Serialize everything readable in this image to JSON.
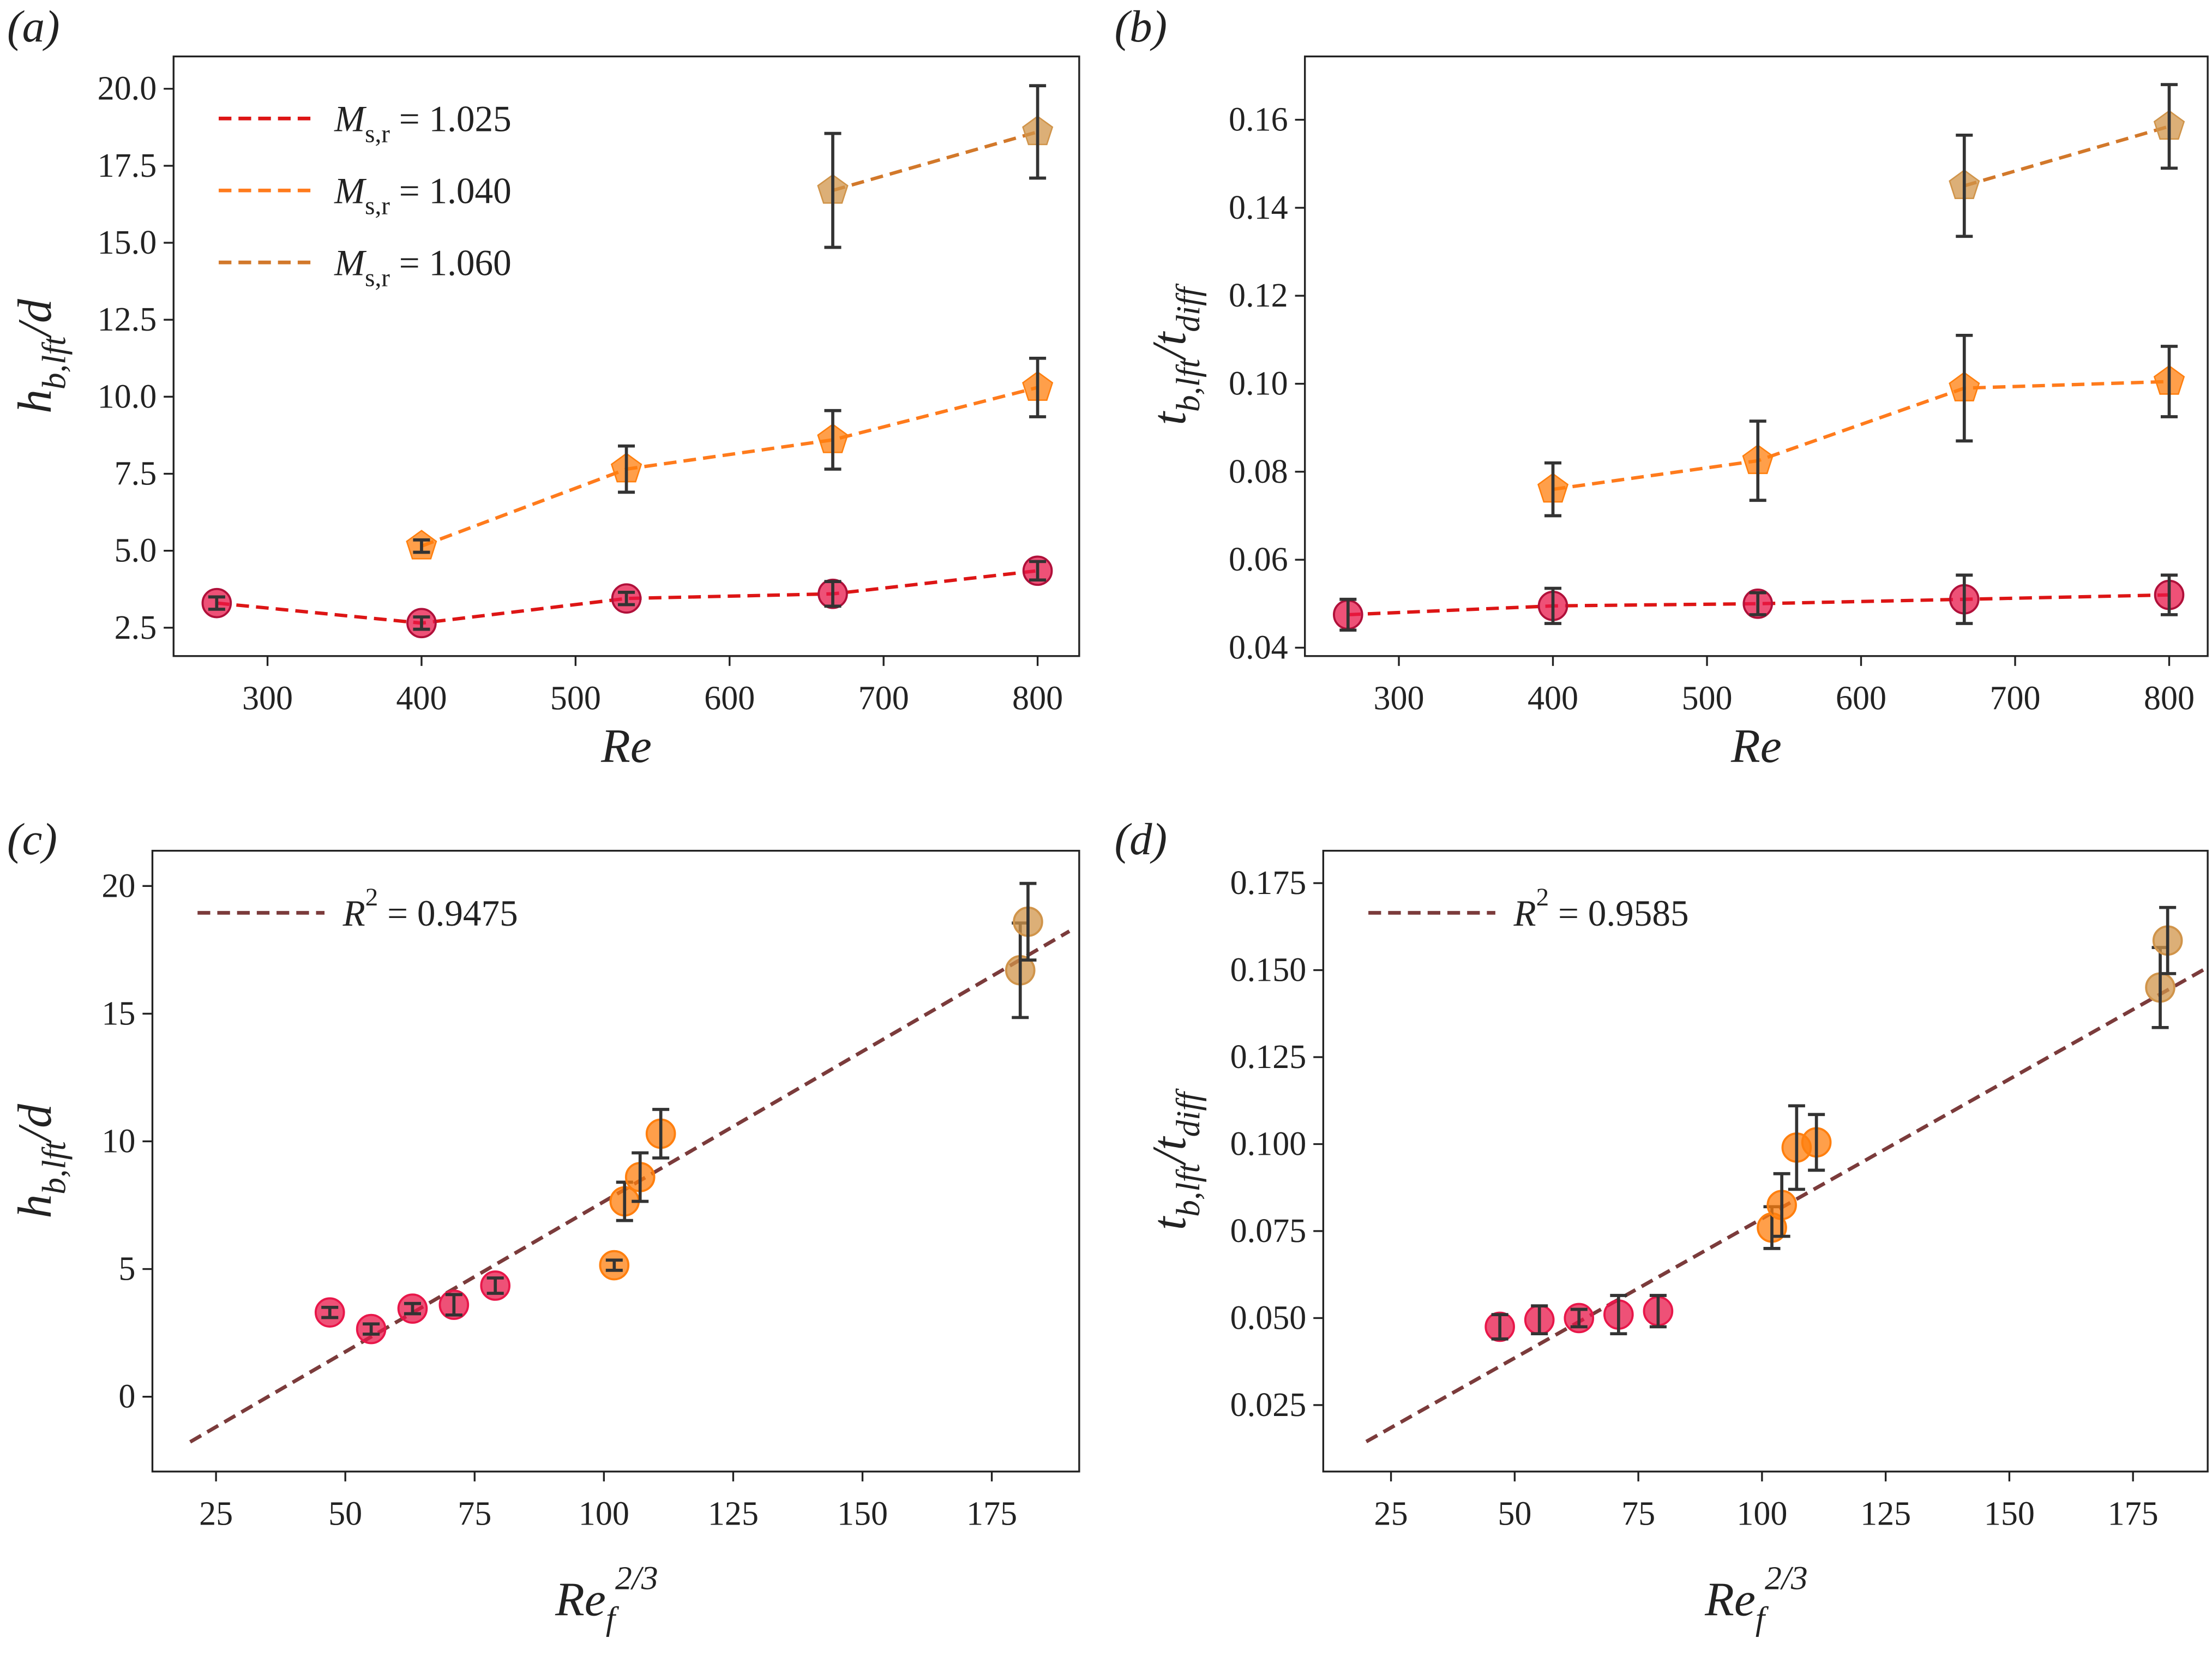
{
  "chart_data": [
    {
      "type": "line",
      "title": "(a)",
      "xlabel": [
        {
          "text": "Re"
        }
      ],
      "ylabel": [
        {
          "text": "h"
        },
        {
          "text": "b,lft",
          "sub": true
        },
        {
          "text": "/d"
        }
      ],
      "x": [
        267,
        400,
        533,
        667,
        800
      ],
      "xlim": [
        239,
        827
      ],
      "xticks": [
        300,
        400,
        500,
        600,
        700,
        800
      ],
      "ylim": [
        1.58,
        21.05
      ],
      "yticks": [
        2.5,
        {
          "value": 5,
          "label": "5.0"
        },
        7.5,
        {
          "value": 10,
          "label": "10.0"
        },
        12.5,
        {
          "value": 15,
          "label": "15.0"
        },
        17.5,
        {
          "value": 20,
          "label": "20.0"
        }
      ],
      "legend": "upper left",
      "series": [
        {
          "name": [
            {
              "text": "M"
            },
            {
              "text": "s,r",
              "sub": true
            },
            {
              "text": " = 1.025"
            }
          ],
          "color": "#dd1515",
          "marker_color": "#e8174a",
          "marker": "circle",
          "values": [
            3.3,
            2.65,
            3.45,
            3.6,
            4.35
          ],
          "errors": [
            0.2,
            0.2,
            0.2,
            0.4,
            0.3
          ]
        },
        {
          "name": [
            {
              "text": "M"
            },
            {
              "text": "s,r",
              "sub": true
            },
            {
              "text": " = 1.040"
            }
          ],
          "color": "#ff7b1c",
          "marker_color": "#ff7f0e",
          "marker": "pentagon",
          "values": [
            null,
            5.15,
            7.65,
            8.6,
            10.3
          ],
          "errors": [
            null,
            0.2,
            0.75,
            0.95,
            0.95
          ]
        },
        {
          "name": [
            {
              "text": "M"
            },
            {
              "text": "s,r",
              "sub": true
            },
            {
              "text": " = 1.060"
            }
          ],
          "color": "#d2782a",
          "marker_color": "#d0944a",
          "marker": "pentagon",
          "values": [
            null,
            null,
            null,
            16.7,
            18.6
          ],
          "errors": [
            null,
            null,
            null,
            1.85,
            1.5
          ]
        }
      ]
    },
    {
      "type": "line",
      "title": "(b)",
      "xlabel": [
        {
          "text": "Re"
        }
      ],
      "ylabel": [
        {
          "text": "t"
        },
        {
          "text": "b,lft",
          "sub": true
        },
        {
          "text": "/t"
        },
        {
          "text": "diff",
          "sub": true
        }
      ],
      "x": [
        267,
        400,
        533,
        667,
        800
      ],
      "xlim": [
        239,
        825
      ],
      "xticks": [
        300,
        400,
        500,
        600,
        700,
        800
      ],
      "ylim": [
        0.0381,
        0.1744
      ],
      "yticks": [
        0.04,
        0.06,
        0.08,
        {
          "value": 0.1,
          "label": "0.10"
        },
        0.12,
        0.14,
        0.16
      ],
      "series": [
        {
          "color": "#dd1515",
          "marker_color": "#e8174a",
          "marker": "circle",
          "values": [
            0.0475,
            0.0495,
            0.05,
            0.051,
            0.052
          ],
          "errors": [
            0.0035,
            0.004,
            0.0025,
            0.0055,
            0.0045
          ]
        },
        {
          "color": "#ff7b1c",
          "marker_color": "#ff7f0e",
          "marker": "pentagon",
          "values": [
            null,
            0.076,
            0.0825,
            0.099,
            0.1005
          ],
          "errors": [
            null,
            0.006,
            0.009,
            0.012,
            0.008
          ]
        },
        {
          "color": "#d2782a",
          "marker_color": "#d0944a",
          "marker": "pentagon",
          "values": [
            null,
            null,
            null,
            0.145,
            0.1585
          ],
          "errors": [
            null,
            null,
            null,
            0.0115,
            0.0095
          ]
        }
      ]
    },
    {
      "type": "scatter",
      "title": "(c)",
      "xlabel": [
        {
          "text": "Re"
        },
        {
          "text": "f",
          "sub": true
        },
        {
          "text": "2/3",
          "sup": true
        }
      ],
      "ylabel": [
        {
          "text": "h"
        },
        {
          "text": "b,lft",
          "sub": true
        },
        {
          "text": "/d"
        }
      ],
      "xlim": [
        12.7,
        191.9
      ],
      "xticks": [
        25,
        50,
        75,
        100,
        125,
        150,
        175
      ],
      "ylim": [
        -2.93,
        21.38
      ],
      "yticks": [
        0,
        5,
        10,
        15,
        20
      ],
      "legend": "upper left",
      "fit": {
        "name": [
          {
            "text": "R"
          },
          {
            "text": "2",
            "sup": true
          },
          {
            "text": " = 0.9475"
          }
        ],
        "color": "#7b3b3b",
        "x": [
          20,
          190
        ],
        "values": [
          -1.77,
          18.23
        ]
      },
      "series": [
        {
          "color": "#e8174a",
          "x": [
            47,
            55,
            63,
            71,
            79
          ],
          "values": [
            3.3,
            2.65,
            3.45,
            3.6,
            4.35
          ],
          "errors": [
            0.2,
            0.2,
            0.2,
            0.4,
            0.3
          ]
        },
        {
          "color": "#ff7f0e",
          "x": [
            102,
            104,
            107,
            111
          ],
          "values": [
            5.15,
            7.65,
            8.6,
            10.3
          ],
          "errors": [
            0.2,
            0.75,
            0.95,
            0.95
          ]
        },
        {
          "color": "#d0944a",
          "x": [
            180.5,
            182
          ],
          "values": [
            16.7,
            18.6
          ],
          "errors": [
            1.85,
            1.5
          ]
        }
      ]
    },
    {
      "type": "scatter",
      "title": "(d)",
      "xlabel": [
        {
          "text": "Re"
        },
        {
          "text": "f",
          "sub": true
        },
        {
          "text": "2/3",
          "sup": true
        }
      ],
      "ylabel": [
        {
          "text": "t"
        },
        {
          "text": "b,lft",
          "sub": true
        },
        {
          "text": "/t"
        },
        {
          "text": "diff",
          "sub": true
        }
      ],
      "xlim": [
        11.3,
        190.1
      ],
      "xticks": [
        25,
        50,
        75,
        100,
        125,
        150,
        175
      ],
      "ylim": [
        0.0059,
        0.1843
      ],
      "yticks": [
        0.025,
        {
          "value": 0.05,
          "label": "0.050"
        },
        0.075,
        {
          "value": 0.1,
          "label": "0.100"
        },
        0.125,
        {
          "value": 0.15,
          "label": "0.150"
        },
        0.175
      ],
      "legend": "upper left",
      "fit": {
        "name": [
          {
            "text": "R"
          },
          {
            "text": "2",
            "sup": true
          },
          {
            "text": " = 0.9585"
          }
        ],
        "color": "#7b3b3b",
        "x": [
          20,
          190
        ],
        "values": [
          0.0145,
          0.1507
        ]
      },
      "series": [
        {
          "color": "#e8174a",
          "x": [
            47,
            55,
            63,
            71,
            79
          ],
          "values": [
            0.0475,
            0.0495,
            0.05,
            0.051,
            0.052
          ],
          "errors": [
            0.0035,
            0.004,
            0.0025,
            0.0055,
            0.0045
          ]
        },
        {
          "color": "#ff7f0e",
          "x": [
            102,
            104,
            107,
            111
          ],
          "values": [
            0.076,
            0.0825,
            0.099,
            0.1005
          ],
          "errors": [
            0.006,
            0.009,
            0.012,
            0.008
          ]
        },
        {
          "color": "#d0944a",
          "x": [
            180.5,
            182
          ],
          "values": [
            0.145,
            0.1585
          ],
          "errors": [
            0.0115,
            0.0095
          ]
        }
      ]
    }
  ]
}
